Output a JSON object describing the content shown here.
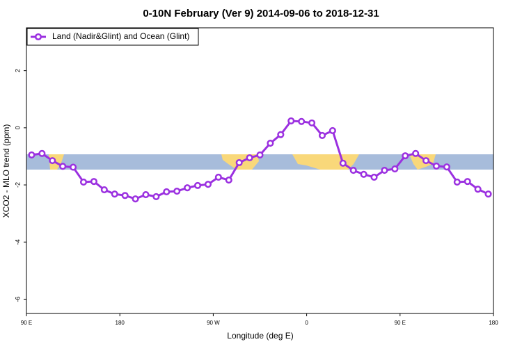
{
  "chart_data": {
    "type": "line",
    "title": "0-10N February (Ver 9)   2014-09-06 to 2018-12-31",
    "x_label": "Longitude (deg E)",
    "y_label": "XCO2 - MLO trend (ppm)",
    "x": [
      95,
      105,
      115,
      125,
      135,
      145,
      155,
      165,
      175,
      185,
      195,
      205,
      215,
      225,
      235,
      245,
      255,
      265,
      275,
      285,
      295,
      305,
      315,
      325,
      335,
      345,
      355,
      365,
      375,
      385,
      395,
      405,
      415,
      425,
      435,
      445,
      455,
      465,
      475,
      485,
      495,
      505,
      515,
      525,
      535
    ],
    "series": [
      {
        "name": "Land (Nadir&Glint) and Ocean (Glint)",
        "color": "#9b30e0",
        "values": [
          -0.95,
          -0.9,
          -1.15,
          -1.35,
          -1.38,
          -1.9,
          -1.88,
          -2.17,
          -2.32,
          -2.37,
          -2.49,
          -2.34,
          -2.41,
          -2.24,
          -2.22,
          -2.1,
          -2.02,
          -1.98,
          -1.73,
          -1.83,
          -1.22,
          -1.05,
          -0.95,
          -0.54,
          -0.24,
          0.24,
          0.22,
          0.17,
          -0.27,
          -0.1,
          -1.24,
          -1.49,
          -1.63,
          -1.73,
          -1.49,
          -1.44,
          -0.98,
          -0.9,
          -1.15,
          -1.34,
          -1.37,
          -1.9,
          -1.88,
          -2.15,
          -2.32
        ]
      }
    ],
    "xlim": [
      90,
      540
    ],
    "xticks": [
      {
        "value": 90,
        "label": "90 E"
      },
      180,
      {
        "value": 270,
        "label": "90 W"
      },
      {
        "value": 360,
        "label": "0"
      },
      {
        "value": 450,
        "label": "90 E"
      },
      {
        "value": 540,
        "label": "180"
      }
    ],
    "ylim": [
      -6.5,
      3.5
    ],
    "yticks": [
      -6,
      -4,
      -2,
      0,
      2
    ],
    "legend": "top-left"
  }
}
